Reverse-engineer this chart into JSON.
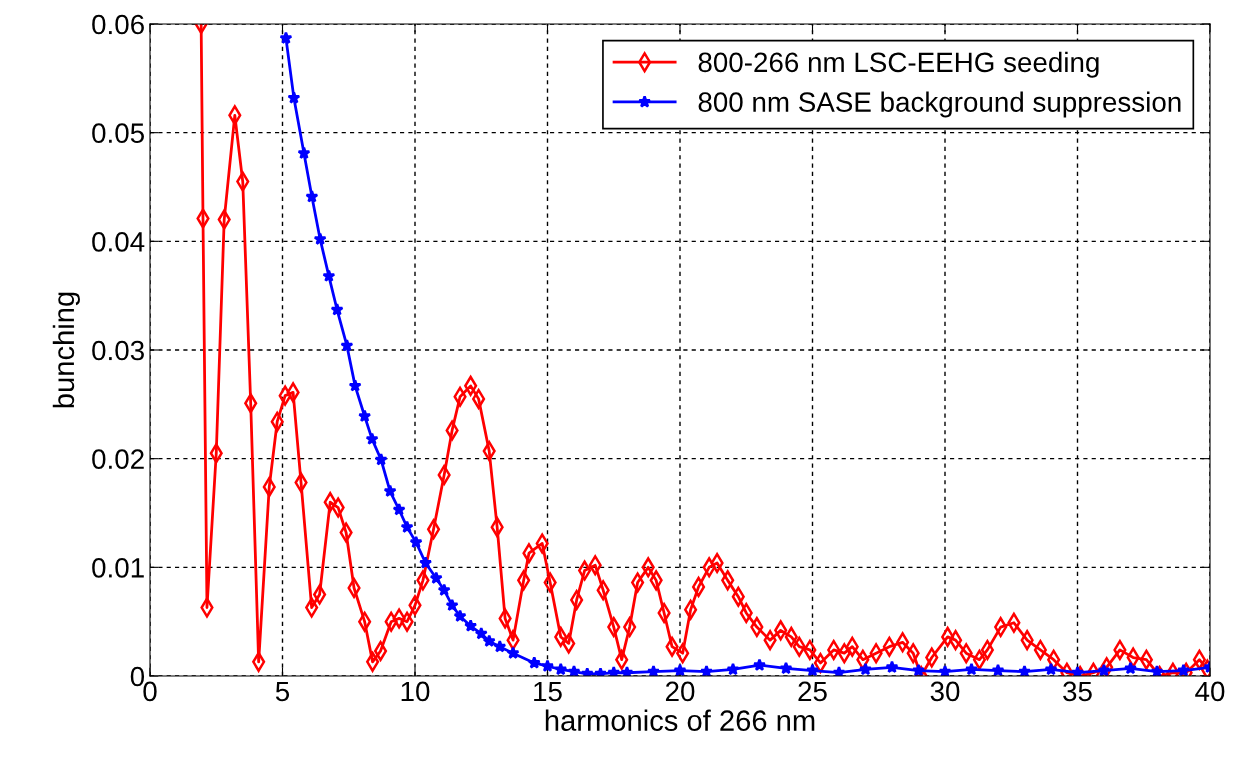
{
  "chart_data": {
    "type": "line",
    "xlabel": "harmonics of 266 nm",
    "ylabel": "bunching",
    "xlim": [
      0,
      40
    ],
    "ylim": [
      0,
      0.06
    ],
    "xticks": [
      0,
      5,
      10,
      15,
      20,
      25,
      30,
      35,
      40
    ],
    "yticks": [
      0,
      0.01,
      0.02,
      0.03,
      0.04,
      0.05,
      0.06
    ],
    "grid": true,
    "legend": "top right",
    "series": [
      {
        "name": "800-266 nm LSC-EEHG seeding",
        "color": "#ff0000",
        "marker": "diamond",
        "x": [
          1.93,
          2.0,
          2.15,
          2.5,
          2.8,
          3.2,
          3.5,
          3.8,
          4.1,
          4.5,
          4.8,
          5.1,
          5.4,
          5.7,
          6.1,
          6.4,
          6.8,
          7.1,
          7.4,
          7.7,
          8.1,
          8.4,
          8.7,
          9.1,
          9.4,
          9.7,
          10.0,
          10.3,
          10.7,
          11.1,
          11.4,
          11.7,
          12.1,
          12.4,
          12.8,
          13.1,
          13.4,
          13.7,
          14.1,
          14.3,
          14.8,
          15.1,
          15.5,
          15.8,
          16.1,
          16.4,
          16.8,
          17.1,
          17.5,
          17.8,
          18.1,
          18.4,
          18.8,
          19.1,
          19.4,
          19.7,
          20.1,
          20.4,
          20.7,
          21.1,
          21.4,
          21.8,
          22.2,
          22.5,
          22.9,
          23.4,
          23.8,
          24.2,
          24.5,
          24.9,
          25.3,
          25.8,
          26.2,
          26.5,
          26.9,
          27.4,
          27.9,
          28.4,
          28.8,
          29.1,
          29.5,
          30.1,
          30.4,
          30.8,
          31.3,
          31.6,
          32.1,
          32.6,
          33.1,
          33.6,
          34.1,
          34.6,
          35.1,
          35.6,
          36.1,
          36.6,
          37.1,
          37.6,
          38.1,
          38.6,
          39.1,
          39.6,
          39.9
        ],
        "values": [
          0.06,
          0.0421,
          0.0063,
          0.0205,
          0.042,
          0.0516,
          0.0455,
          0.0251,
          0.0013,
          0.0174,
          0.0234,
          0.0258,
          0.0261,
          0.0178,
          0.0063,
          0.0075,
          0.016,
          0.0155,
          0.0132,
          0.0081,
          0.005,
          0.0013,
          0.0023,
          0.005,
          0.0053,
          0.005,
          0.0065,
          0.0088,
          0.0135,
          0.0185,
          0.0226,
          0.0257,
          0.0267,
          0.0255,
          0.0207,
          0.0137,
          0.0053,
          0.0033,
          0.0088,
          0.0113,
          0.0122,
          0.0086,
          0.0036,
          0.003,
          0.007,
          0.0097,
          0.0102,
          0.0079,
          0.0045,
          0.0015,
          0.0045,
          0.0086,
          0.01,
          0.0088,
          0.0058,
          0.0027,
          0.0021,
          0.0061,
          0.0082,
          0.01,
          0.0104,
          0.0088,
          0.0073,
          0.0058,
          0.0045,
          0.0033,
          0.0042,
          0.0036,
          0.0027,
          0.0024,
          0.0012,
          0.0024,
          0.0021,
          0.0027,
          0.0015,
          0.0021,
          0.0027,
          0.0031,
          0.0021,
          0.0,
          0.0017,
          0.0036,
          0.0033,
          0.0021,
          0.0015,
          0.0024,
          0.0045,
          0.0049,
          0.0033,
          0.0024,
          0.0015,
          0.0003,
          0.0,
          0.0003,
          0.0008,
          0.0024,
          0.0017,
          0.0015,
          0.0,
          0.0003,
          0.0003,
          0.0015,
          0.0006
        ]
      },
      {
        "name": "800 nm SASE background suppression",
        "color": "#0000ff",
        "marker": "star",
        "x": [
          5.13,
          5.43,
          5.81,
          6.11,
          6.42,
          6.75,
          7.06,
          7.43,
          7.74,
          8.1,
          8.38,
          8.72,
          9.06,
          9.4,
          9.7,
          10.04,
          10.4,
          10.8,
          11.1,
          11.4,
          11.7,
          12.1,
          12.5,
          12.8,
          13.2,
          13.7,
          14.5,
          15,
          15.5,
          16,
          16.5,
          17,
          17.5,
          18,
          19,
          20,
          21,
          22,
          23,
          24,
          25,
          26,
          27,
          28,
          29,
          30,
          31,
          32,
          33,
          34,
          35,
          36,
          37,
          38,
          39,
          40
        ],
        "values": [
          0.0587,
          0.0532,
          0.0481,
          0.0441,
          0.0402,
          0.0368,
          0.0337,
          0.0304,
          0.0267,
          0.0239,
          0.0218,
          0.0199,
          0.017,
          0.0153,
          0.0137,
          0.0123,
          0.0104,
          0.009,
          0.0079,
          0.0065,
          0.0055,
          0.0046,
          0.0039,
          0.0032,
          0.0027,
          0.0021,
          0.0012,
          0.0009,
          0.0006,
          0.0004,
          0.0002,
          0.0002,
          0.0003,
          0.0003,
          0.0004,
          0.0005,
          0.0004,
          0.0006,
          0.001,
          0.0007,
          0.0005,
          0.0003,
          0.0006,
          0.0008,
          0.0005,
          0.0004,
          0.0006,
          0.0005,
          0.0004,
          0.0006,
          0.0003,
          0.0005,
          0.0007,
          0.0004,
          0.0005,
          0.0008
        ]
      }
    ]
  }
}
